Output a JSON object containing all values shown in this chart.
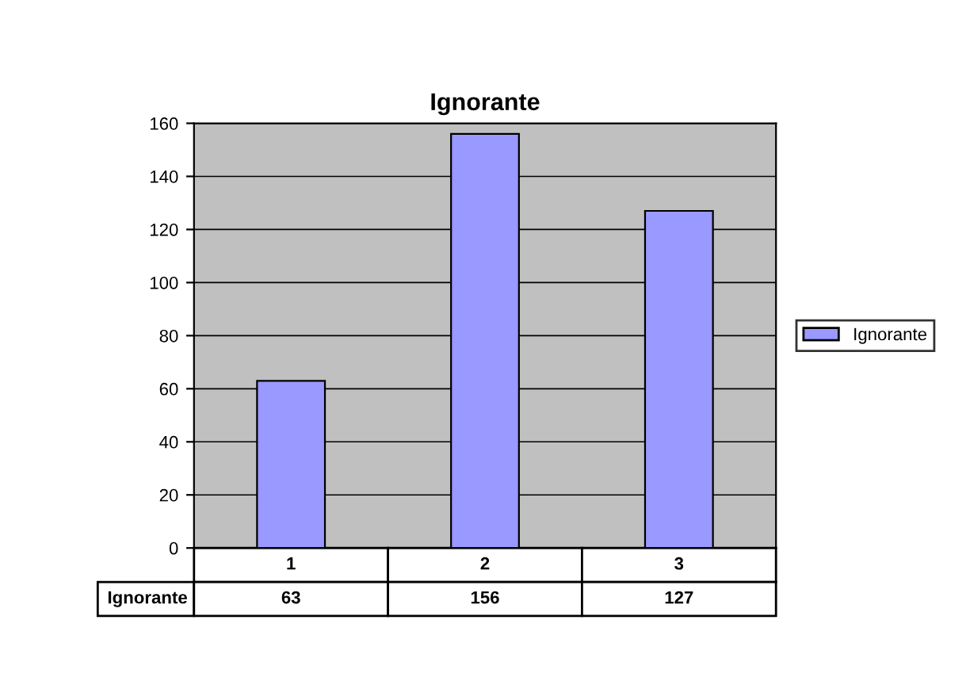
{
  "chart_data": {
    "type": "bar",
    "title": "Ignorante",
    "categories": [
      "1",
      "2",
      "3"
    ],
    "series": [
      {
        "name": "Ignorante",
        "color": "#9999ff",
        "values": [
          63,
          156,
          127
        ]
      }
    ],
    "ylim": [
      0,
      160
    ],
    "yticks": [
      0,
      20,
      40,
      60,
      80,
      100,
      120,
      140,
      160
    ],
    "grid": "y",
    "legend": "right",
    "data_labels": true
  }
}
